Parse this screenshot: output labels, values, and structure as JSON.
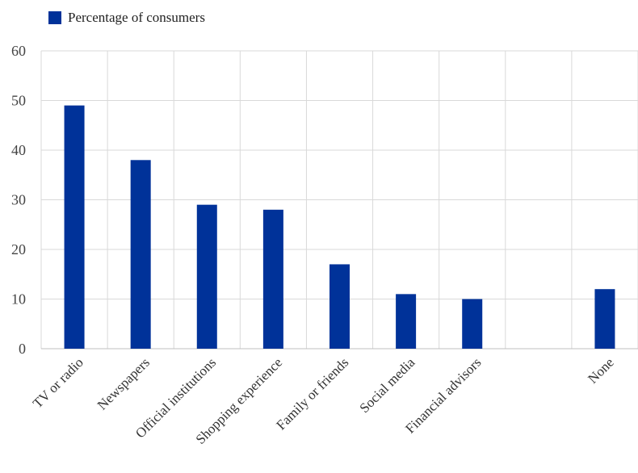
{
  "chart_data": {
    "type": "bar",
    "categories": [
      "TV or radio",
      "Newspapers",
      "Official institutions",
      "Shopping experience",
      "Family or friends",
      "Social media",
      "Financial advisors",
      "",
      "None"
    ],
    "series": [
      {
        "name": "Percentage of consumers",
        "values": [
          49,
          38,
          29,
          28,
          17,
          11,
          10,
          null,
          12
        ],
        "color": "#003299"
      }
    ],
    "yticks": [
      "0",
      "10",
      "20",
      "30",
      "40",
      "50",
      "60"
    ],
    "ylim": [
      0,
      60
    ],
    "grid": true,
    "legend_position": "top-left",
    "title": "",
    "xlabel": "",
    "ylabel": ""
  }
}
